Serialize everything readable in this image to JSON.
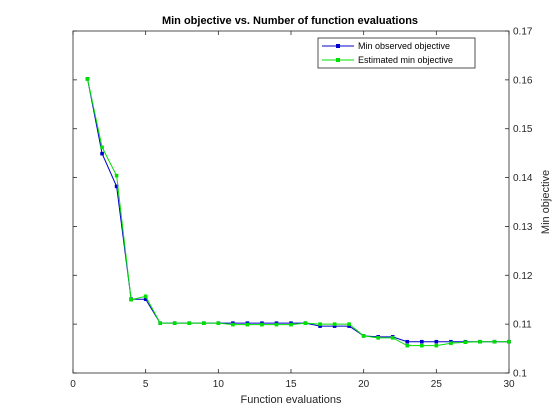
{
  "chart_data": {
    "type": "line",
    "title": "Min objective vs. Number of function evaluations",
    "xlabel": "Function evaluations",
    "ylabel": "Min objective",
    "xlim": [
      0,
      30
    ],
    "ylim": [
      0.1,
      0.17
    ],
    "x_ticks": [
      0,
      5,
      10,
      15,
      20,
      25,
      30
    ],
    "x_tick_labels": [
      "0",
      "5",
      "10",
      "15",
      "20",
      "25",
      "30"
    ],
    "y_ticks": [
      0.1,
      0.11,
      0.12,
      0.13,
      0.14,
      0.15,
      0.16,
      0.17
    ],
    "y_tick_labels": [
      "0.1",
      "0.11",
      "0.12",
      "0.13",
      "0.14",
      "0.15",
      "0.16",
      "0.17"
    ],
    "y_axis_side": "right",
    "grid": false,
    "legend_position": "top-right",
    "x": [
      1,
      2,
      3,
      4,
      5,
      6,
      7,
      8,
      9,
      10,
      11,
      12,
      13,
      14,
      15,
      16,
      17,
      18,
      19,
      20,
      21,
      22,
      23,
      24,
      25,
      26,
      27,
      28,
      29,
      30
    ],
    "series": [
      {
        "name": "Min observed objective",
        "color": "#0000cc",
        "marker": "square",
        "values": [
          0.1602,
          0.1449,
          0.1382,
          0.1151,
          0.1151,
          0.1102,
          0.1102,
          0.1102,
          0.1102,
          0.1102,
          0.1102,
          0.1102,
          0.1102,
          0.1102,
          0.1102,
          0.1102,
          0.1096,
          0.1096,
          0.1096,
          0.1076,
          0.1074,
          0.1074,
          0.1064,
          0.1064,
          0.1064,
          0.1064,
          0.1064,
          0.1064,
          0.1064,
          0.1064
        ]
      },
      {
        "name": "Estimated min objective",
        "color": "#00e000",
        "marker": "square",
        "values": [
          0.1602,
          0.1462,
          0.1404,
          0.115,
          0.1157,
          0.1102,
          0.1102,
          0.1102,
          0.1102,
          0.1102,
          0.1099,
          0.1099,
          0.1099,
          0.1099,
          0.1099,
          0.1102,
          0.11,
          0.11,
          0.11,
          0.1076,
          0.1072,
          0.1072,
          0.1056,
          0.1056,
          0.1056,
          0.1061,
          0.1063,
          0.1064,
          0.1064,
          0.1064
        ]
      }
    ]
  }
}
